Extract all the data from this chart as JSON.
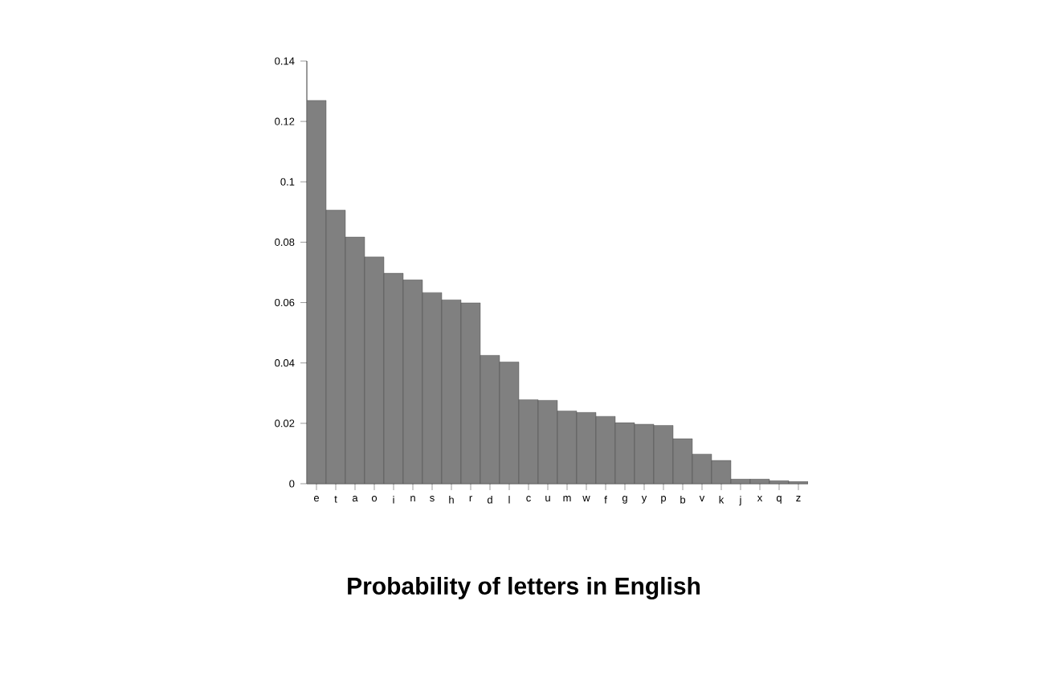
{
  "chart_data": {
    "type": "bar",
    "title": "Probability of letters in English",
    "categories": [
      "e",
      "t",
      "a",
      "o",
      "i",
      "n",
      "s",
      "h",
      "r",
      "d",
      "l",
      "c",
      "u",
      "m",
      "w",
      "f",
      "g",
      "y",
      "p",
      "b",
      "v",
      "k",
      "j",
      "x",
      "q",
      "z"
    ],
    "values": [
      0.127,
      0.0906,
      0.0817,
      0.0751,
      0.0697,
      0.0675,
      0.0633,
      0.0609,
      0.0599,
      0.0425,
      0.0403,
      0.0278,
      0.0276,
      0.0241,
      0.0236,
      0.0223,
      0.0202,
      0.0197,
      0.0193,
      0.0149,
      0.0098,
      0.0077,
      0.0015,
      0.0015,
      0.001,
      0.0007
    ],
    "color": "#808080",
    "ylim": [
      0,
      0.14
    ],
    "yticks": [
      0,
      0.02,
      0.04,
      0.06,
      0.08,
      0.1,
      0.12,
      0.14
    ]
  }
}
